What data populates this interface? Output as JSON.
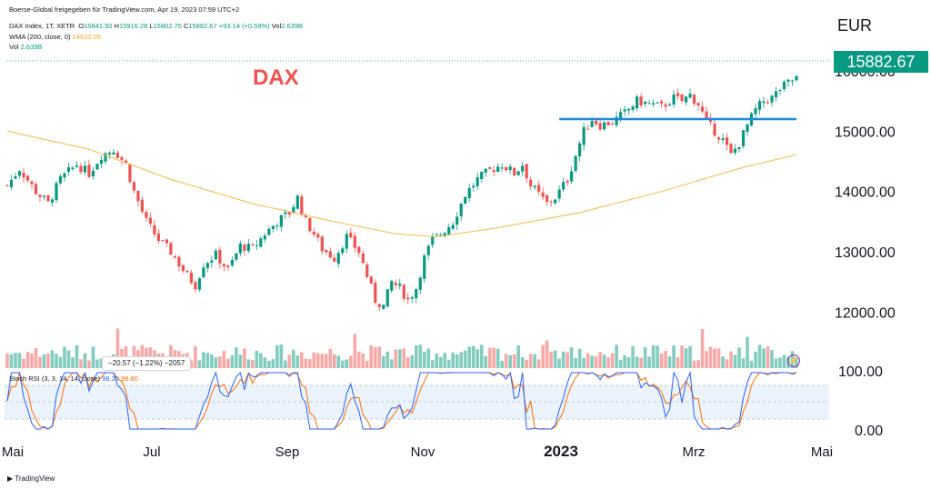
{
  "header": {
    "line1_prefix": "Boerse-Global freigegeben für TradingView.com, Apr 19, 2023 07:59 UTC+2",
    "symbol": "DAX Index, 1T, XETR",
    "o_label": "O",
    "o_val": "15841.50",
    "h_label": "H",
    "h_val": "15916.28",
    "l_label": "L",
    "l_val": "15802.75",
    "c_label": "C",
    "c_val": "15882.67",
    "chg": "+93.14 (+0.59%)",
    "vol_label": "Vol",
    "vol_val": "2.639B",
    "wma_label": "WMA (200, close, 0)",
    "wma_val": "14610.09",
    "vol2_label": "Vol",
    "vol2_val": "2.639B"
  },
  "annotation": "DAX",
  "currency": "EUR",
  "last_price": "15882.67",
  "tooltip": "−20.57 (−1.22%) −2057",
  "stoch": {
    "label": "Stoch RSI (3, 3, 14, 14, close)",
    "k": "98.20",
    "d": "98.80"
  },
  "footer": "TradingView",
  "colors": {
    "up": "#089981",
    "down": "#ef5350",
    "wma": "#f7b84b",
    "line": "#1e88e5",
    "k": "#2962ff",
    "d": "#ff6d00"
  },
  "chart_data": {
    "type": "candlestick",
    "title": "DAX Index, 1T, XETR",
    "x_ticks": [
      "Mai",
      "Jul",
      "Sep",
      "Nov",
      "2023",
      "Mrz",
      "Mai"
    ],
    "y_ticks": [
      "12000.00",
      "13000.00",
      "14000.00",
      "15000.00",
      "16000.00"
    ],
    "ylim": [
      11450,
      16300
    ],
    "close_path": [
      [
        0,
        14100
      ],
      [
        3,
        14380
      ],
      [
        7,
        14000
      ],
      [
        10,
        13800
      ],
      [
        13,
        14200
      ],
      [
        17,
        14450
      ],
      [
        20,
        14300
      ],
      [
        23,
        14600
      ],
      [
        26,
        14700
      ],
      [
        29,
        14450
      ],
      [
        31,
        14000
      ],
      [
        34,
        13500
      ],
      [
        37,
        13200
      ],
      [
        40,
        13000
      ],
      [
        44,
        12600
      ],
      [
        46,
        12450
      ],
      [
        48,
        12800
      ],
      [
        51,
        12950
      ],
      [
        54,
        12700
      ],
      [
        57,
        13100
      ],
      [
        60,
        13050
      ],
      [
        63,
        13300
      ],
      [
        66,
        13500
      ],
      [
        69,
        13650
      ],
      [
        71,
        13900
      ],
      [
        73,
        13500
      ],
      [
        75,
        13300
      ],
      [
        77,
        13050
      ],
      [
        80,
        12900
      ],
      [
        83,
        13250
      ],
      [
        86,
        13000
      ],
      [
        88,
        12600
      ],
      [
        90,
        12200
      ],
      [
        92,
        12100
      ],
      [
        94,
        12500
      ],
      [
        96,
        12400
      ],
      [
        98,
        12200
      ],
      [
        100,
        12400
      ],
      [
        102,
        12900
      ],
      [
        104,
        13200
      ],
      [
        106,
        13300
      ],
      [
        109,
        13500
      ],
      [
        112,
        13950
      ],
      [
        115,
        14200
      ],
      [
        118,
        14350
      ],
      [
        121,
        14450
      ],
      [
        124,
        14300
      ],
      [
        126,
        14450
      ],
      [
        128,
        14100
      ],
      [
        130,
        13950
      ],
      [
        132,
        13800
      ],
      [
        134,
        13900
      ],
      [
        137,
        14200
      ],
      [
        139,
        14600
      ],
      [
        141,
        15000
      ],
      [
        143,
        15200
      ],
      [
        145,
        15100
      ],
      [
        148,
        15150
      ],
      [
        151,
        15300
      ],
      [
        154,
        15500
      ],
      [
        157,
        15450
      ],
      [
        160,
        15400
      ],
      [
        163,
        15550
      ],
      [
        165,
        15500
      ],
      [
        167,
        15600
      ],
      [
        169,
        15450
      ],
      [
        171,
        15150
      ],
      [
        173,
        15000
      ],
      [
        175,
        14850
      ],
      [
        177,
        14600
      ],
      [
        179,
        14800
      ],
      [
        181,
        15100
      ],
      [
        183,
        15350
      ],
      [
        185,
        15500
      ],
      [
        187,
        15550
      ],
      [
        189,
        15700
      ],
      [
        191,
        15800
      ],
      [
        193,
        15883
      ]
    ],
    "wma_path": [
      [
        0,
        15000
      ],
      [
        20,
        14700
      ],
      [
        40,
        14200
      ],
      [
        60,
        13800
      ],
      [
        80,
        13500
      ],
      [
        95,
        13300
      ],
      [
        105,
        13250
      ],
      [
        120,
        13400
      ],
      [
        140,
        13650
      ],
      [
        160,
        14000
      ],
      [
        180,
        14400
      ],
      [
        193,
        14610
      ]
    ],
    "resistance": [
      [
        135,
        15200
      ],
      [
        193,
        15200
      ]
    ],
    "volume_ylim": [
      0,
      1
    ]
  }
}
